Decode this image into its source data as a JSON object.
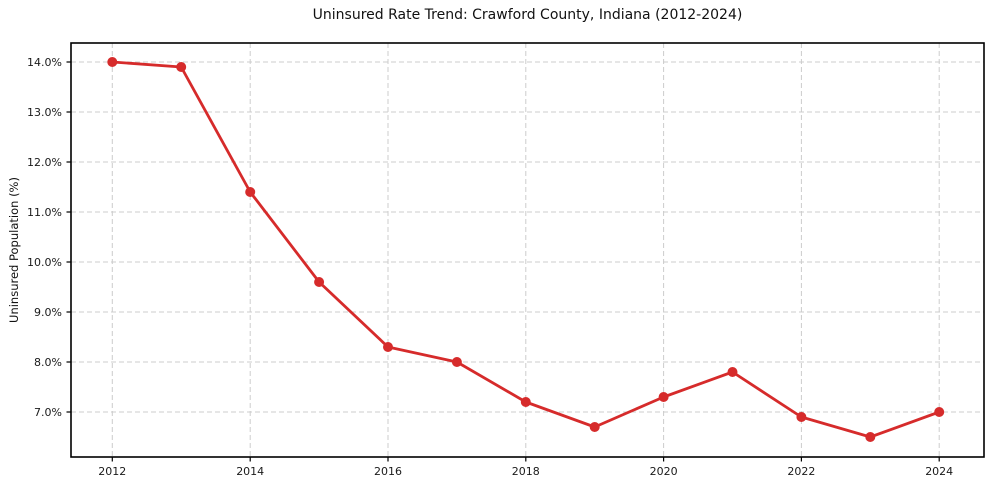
{
  "chart_data": {
    "type": "line",
    "title": "Uninsured Rate Trend: Crawford County, Indiana (2012-2024)",
    "xlabel": "",
    "ylabel": "Uninsured Population (%)",
    "x": [
      2012,
      2013,
      2014,
      2015,
      2016,
      2017,
      2018,
      2019,
      2020,
      2021,
      2022,
      2023,
      2024
    ],
    "series": [
      {
        "name": "Uninsured Rate",
        "values": [
          14.0,
          13.9,
          11.4,
          9.6,
          8.3,
          8.0,
          7.2,
          6.7,
          7.3,
          7.8,
          6.9,
          6.5,
          7.0
        ],
        "color": "#d62b2b"
      }
    ],
    "xticks": [
      2012,
      2014,
      2016,
      2018,
      2020,
      2022,
      2024
    ],
    "xtick_labels": [
      "2012",
      "2014",
      "2016",
      "2018",
      "2020",
      "2022",
      "2024"
    ],
    "yticks": [
      7.0,
      8.0,
      9.0,
      10.0,
      11.0,
      12.0,
      13.0,
      14.0
    ],
    "ytick_labels": [
      "7.0%",
      "8.0%",
      "9.0%",
      "10.0%",
      "11.0%",
      "12.0%",
      "13.0%",
      "14.0%"
    ],
    "xlim": [
      2011.4,
      2024.65
    ],
    "ylim": [
      6.1,
      14.38
    ],
    "grid": true,
    "grid_color": "#cccccc",
    "grid_style": "dashed",
    "legend": false,
    "marker": "circle",
    "marker_radius": 5,
    "line_width": 2.8,
    "axis_color": "#000000",
    "tick_label_color": "#1a1a1a",
    "background": "#ffffff"
  }
}
